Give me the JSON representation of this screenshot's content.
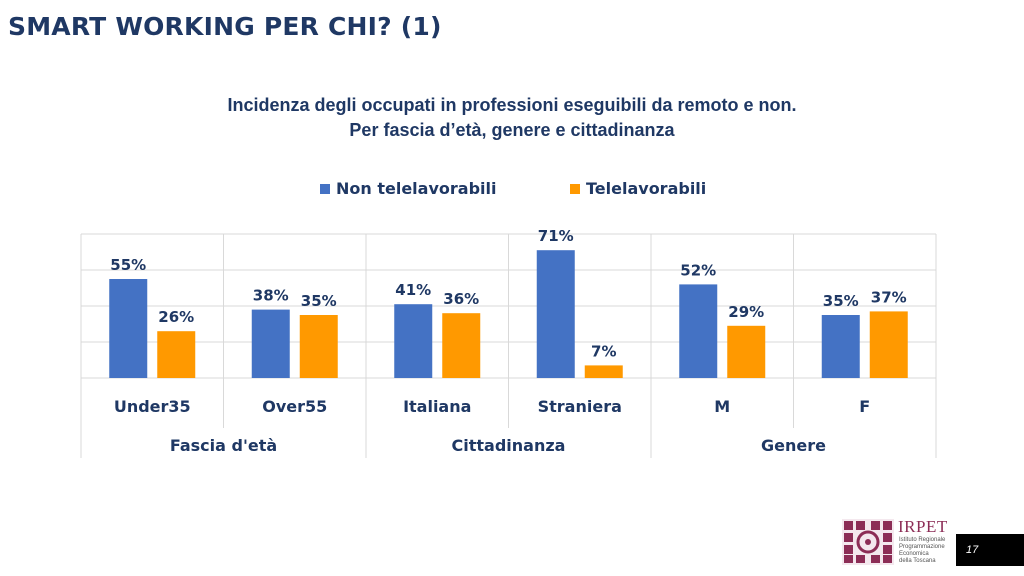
{
  "slide": {
    "title": "SMART WORKING PER CHI? (1)",
    "page_number": "17"
  },
  "logo": {
    "name": "IRPET",
    "subtitle": [
      "Istituto Regionale",
      "Programmazione",
      "Economica",
      "della Toscana"
    ]
  },
  "colors": {
    "title": "#1f3864",
    "non_telelavorabili": "#4472c4",
    "telelavorabili": "#ff9900",
    "grid": "#d9d9d9",
    "label": "#1f3864"
  },
  "chart_data": {
    "type": "bar",
    "title": [
      "Incidenza degli occupati in professioni eseguibili da remoto e non.",
      "Per fascia d’età, genere e cittadinanza"
    ],
    "categories": [
      "Under35",
      "Over55",
      "Italiana",
      "Straniera",
      "M",
      "F"
    ],
    "groups": [
      {
        "label": "Fascia d'età",
        "categories": [
          "Under35",
          "Over55"
        ]
      },
      {
        "label": "Cittadinanza",
        "categories": [
          "Italiana",
          "Straniera"
        ]
      },
      {
        "label": "Genere",
        "categories": [
          "M",
          "F"
        ]
      }
    ],
    "series": [
      {
        "name": "Non telelavorabili",
        "values": [
          55,
          38,
          41,
          71,
          52,
          35
        ],
        "labels": [
          "55%",
          "38%",
          "41%",
          "71%",
          "52%",
          "35%"
        ]
      },
      {
        "name": "Telelavorabili",
        "values": [
          26,
          35,
          36,
          7,
          29,
          37
        ],
        "labels": [
          "26%",
          "35%",
          "36%",
          "7%",
          "29%",
          "37%"
        ]
      }
    ],
    "ylim": [
      0,
      80
    ],
    "grid": true,
    "legend": "top"
  }
}
